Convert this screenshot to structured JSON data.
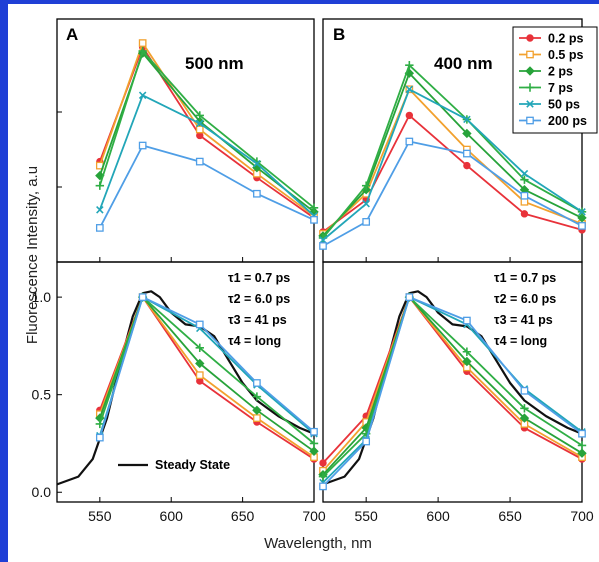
{
  "figure": {
    "ylabel": "Fluorescence Intensity, a.u",
    "xlabel": "Wavelength, nm"
  },
  "colors": {
    "frame": "#1f3fd6",
    "series": [
      "#e8323a",
      "#f2a12e",
      "#27a33a",
      "#2fae45",
      "#22a6b8",
      "#4f9ee6"
    ],
    "steady_state": "#111111"
  },
  "panels": {
    "A": {
      "letter": "A",
      "title": "500 nm"
    },
    "B": {
      "letter": "B",
      "title": "400 nm"
    }
  },
  "tau_labels": [
    "τ1 = 0.7 ps",
    "τ2 = 6.0 ps",
    "τ3 = 41 ps",
    "τ4 = long"
  ],
  "steady_state_label": "Steady State",
  "chart_data": [
    {
      "type": "line",
      "panel": "A-top",
      "title": "500 nm",
      "x": [
        550,
        580,
        620,
        660,
        700
      ],
      "xlim": [
        520,
        700
      ],
      "ylim": [
        0,
        1.1
      ],
      "yticks_shown": false,
      "legend": false,
      "series": [
        {
          "name": "0.2 ps",
          "values": [
            0.44,
            1.01,
            0.57,
            0.36,
            0.16
          ]
        },
        {
          "name": "0.5 ps",
          "values": [
            0.42,
            1.03,
            0.6,
            0.38,
            0.17
          ]
        },
        {
          "name": "2 ps",
          "values": [
            0.37,
            0.98,
            0.64,
            0.41,
            0.19
          ]
        },
        {
          "name": "7 ps",
          "values": [
            0.32,
            0.99,
            0.67,
            0.44,
            0.21
          ]
        },
        {
          "name": "50 ps",
          "values": [
            0.2,
            0.77,
            0.63,
            0.43,
            0.17
          ]
        },
        {
          "name": "200 ps",
          "values": [
            0.11,
            0.52,
            0.44,
            0.28,
            0.15
          ]
        }
      ]
    },
    {
      "type": "line",
      "panel": "B-top",
      "title": "400 nm",
      "x": [
        520,
        550,
        580,
        620,
        660,
        700
      ],
      "xlim": [
        520,
        700
      ],
      "ylim": [
        0,
        1.1
      ],
      "yticks_shown": false,
      "legend": true,
      "legend_position": "top-right",
      "series": [
        {
          "name": "0.2 ps",
          "values": [
            0.09,
            0.25,
            0.67,
            0.42,
            0.18,
            0.1
          ]
        },
        {
          "name": "0.5 ps",
          "values": [
            0.08,
            0.28,
            0.8,
            0.5,
            0.24,
            0.13
          ]
        },
        {
          "name": "2 ps",
          "values": [
            0.07,
            0.3,
            0.88,
            0.58,
            0.3,
            0.16
          ]
        },
        {
          "name": "7 ps",
          "values": [
            0.06,
            0.32,
            0.92,
            0.65,
            0.35,
            0.19
          ]
        },
        {
          "name": "50 ps",
          "values": [
            0.05,
            0.23,
            0.8,
            0.65,
            0.38,
            0.19
          ]
        },
        {
          "name": "200 ps",
          "values": [
            0.02,
            0.14,
            0.54,
            0.48,
            0.27,
            0.12
          ]
        }
      ]
    },
    {
      "type": "line",
      "panel": "A-bottom",
      "xlim": [
        520,
        700
      ],
      "ylim": [
        -0.05,
        1.18
      ],
      "xticks": [
        550,
        600,
        650,
        700
      ],
      "yticks": [
        0.0,
        0.5,
        1.0
      ],
      "ytick_labels": [
        "0.0",
        "0.5",
        "1.0"
      ],
      "x": [
        550,
        580,
        620,
        660,
        700
      ],
      "series": [
        {
          "name": "0.2 ps",
          "values": [
            0.42,
            1.0,
            0.57,
            0.36,
            0.17
          ]
        },
        {
          "name": "0.5 ps",
          "values": [
            0.4,
            1.0,
            0.6,
            0.38,
            0.18
          ]
        },
        {
          "name": "2 ps",
          "values": [
            0.38,
            1.0,
            0.66,
            0.42,
            0.21
          ]
        },
        {
          "name": "7 ps",
          "values": [
            0.35,
            1.0,
            0.74,
            0.49,
            0.25
          ]
        },
        {
          "name": "50 ps",
          "values": [
            0.29,
            1.0,
            0.84,
            0.55,
            0.3
          ]
        },
        {
          "name": "200 ps",
          "values": [
            0.28,
            1.0,
            0.86,
            0.56,
            0.31
          ]
        }
      ],
      "steady_state": {
        "name": "Steady State",
        "x": [
          520,
          535,
          545,
          555,
          565,
          573,
          580,
          586,
          592,
          600,
          610,
          620,
          630,
          640,
          650,
          660,
          675,
          690,
          700
        ],
        "y": [
          0.04,
          0.08,
          0.17,
          0.38,
          0.68,
          0.9,
          1.02,
          1.03,
          1.0,
          0.92,
          0.86,
          0.85,
          0.8,
          0.68,
          0.56,
          0.47,
          0.39,
          0.33,
          0.3
        ]
      }
    },
    {
      "type": "line",
      "panel": "B-bottom",
      "xlim": [
        520,
        700
      ],
      "ylim": [
        -0.05,
        1.18
      ],
      "xticks": [
        550,
        600,
        650,
        700
      ],
      "x": [
        520,
        550,
        580,
        620,
        660,
        700
      ],
      "series": [
        {
          "name": "0.2 ps",
          "values": [
            0.15,
            0.39,
            1.0,
            0.62,
            0.33,
            0.17
          ]
        },
        {
          "name": "0.5 ps",
          "values": [
            0.11,
            0.36,
            1.0,
            0.64,
            0.35,
            0.18
          ]
        },
        {
          "name": "2 ps",
          "values": [
            0.09,
            0.33,
            1.0,
            0.67,
            0.38,
            0.2
          ]
        },
        {
          "name": "7 ps",
          "values": [
            0.08,
            0.3,
            1.0,
            0.72,
            0.43,
            0.24
          ]
        },
        {
          "name": "50 ps",
          "values": [
            0.05,
            0.27,
            1.0,
            0.86,
            0.53,
            0.31
          ]
        },
        {
          "name": "200 ps",
          "values": [
            0.03,
            0.26,
            1.0,
            0.88,
            0.52,
            0.3
          ]
        }
      ],
      "steady_state": {
        "name": "Steady State",
        "x": [
          520,
          535,
          545,
          555,
          565,
          573,
          580,
          586,
          592,
          600,
          610,
          620,
          630,
          640,
          650,
          660,
          675,
          690,
          700
        ],
        "y": [
          0.04,
          0.08,
          0.17,
          0.38,
          0.68,
          0.9,
          1.02,
          1.03,
          1.0,
          0.92,
          0.86,
          0.85,
          0.8,
          0.68,
          0.56,
          0.47,
          0.39,
          0.33,
          0.3
        ]
      }
    }
  ],
  "legend": {
    "entries": [
      "0.2 ps",
      "0.5 ps",
      "2 ps",
      "7 ps",
      "50 ps",
      "200 ps"
    ],
    "markers": [
      "circle",
      "square-open",
      "diamond",
      "plus",
      "x",
      "square-open"
    ]
  }
}
